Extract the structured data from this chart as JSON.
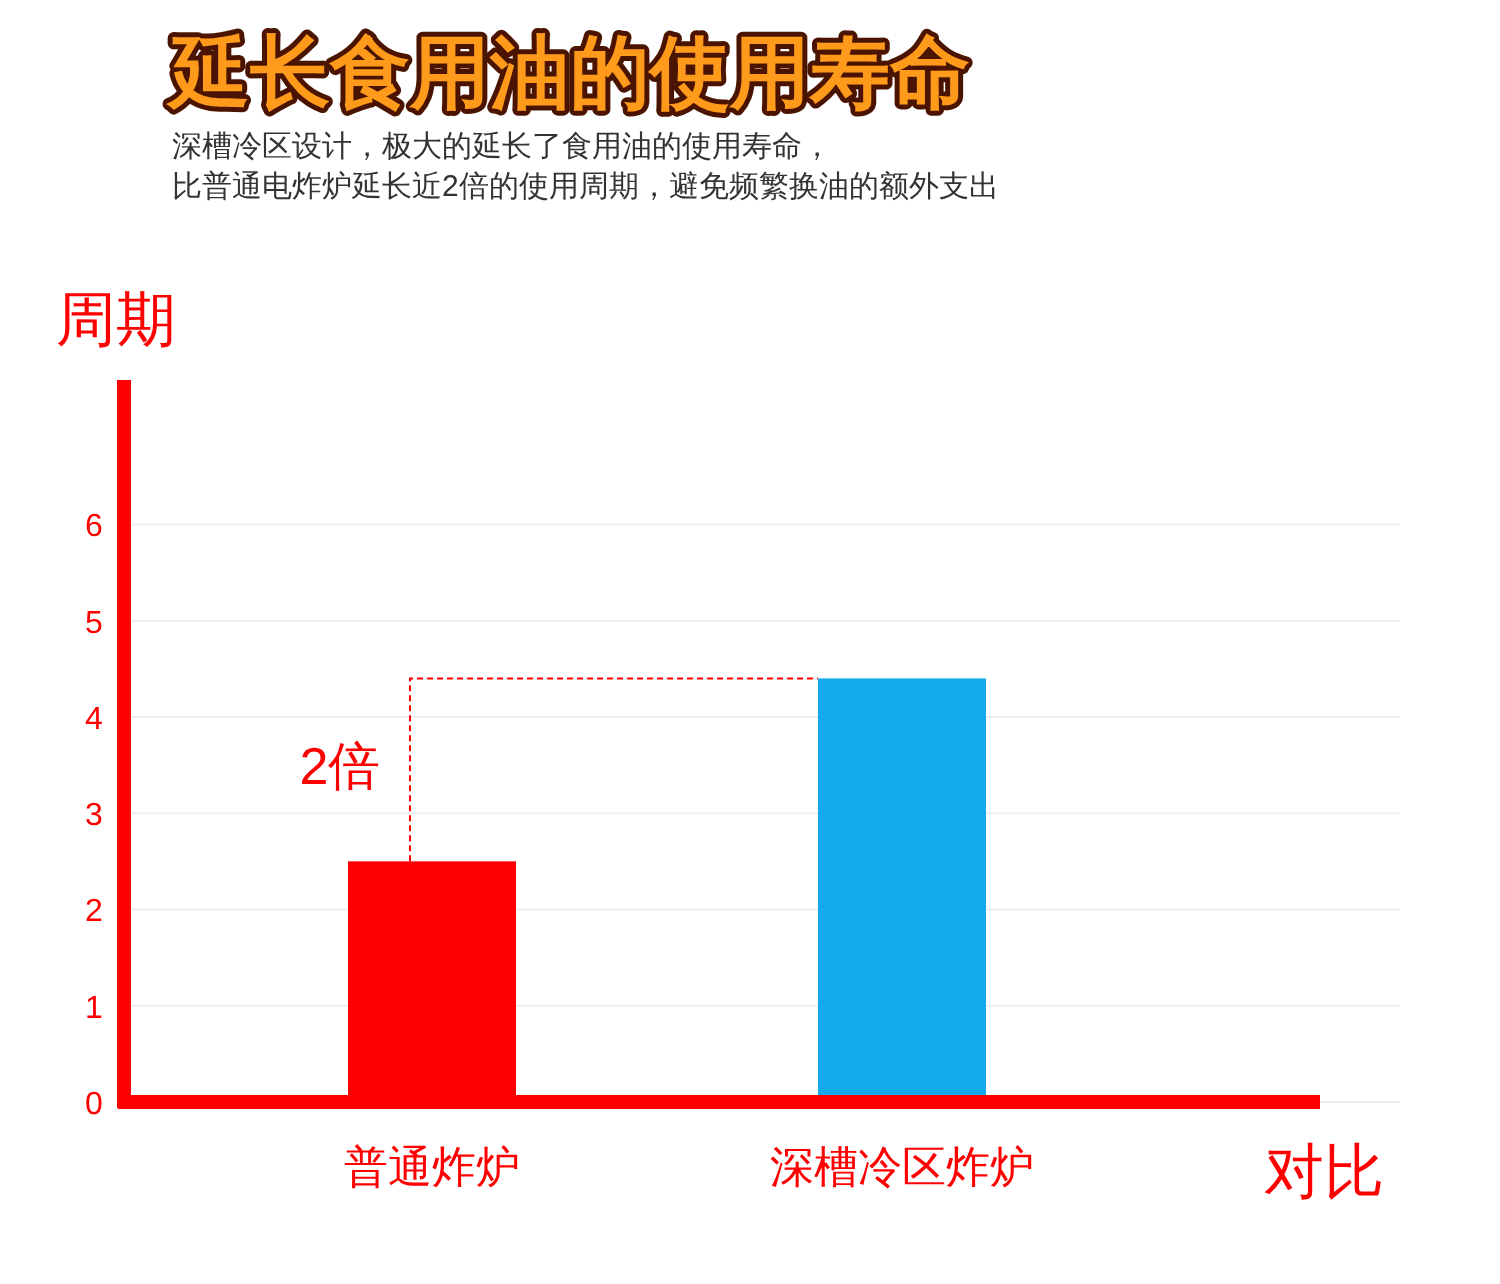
{
  "chart_data": {
    "type": "bar",
    "title": "延长食用油的使用寿命",
    "subtitle": "深槽冷区设计，极大的延长了食用油的使用寿命，比普通电炸炉延长近2倍的使用周期，避免频繁换油的额外支出",
    "ylabel": "周期",
    "xlabel": "对比",
    "categories": [
      "普通炸炉",
      "深槽冷区炸炉"
    ],
    "values": [
      2.5,
      4.4
    ],
    "colors": [
      "#ff0000",
      "#12aaeb"
    ],
    "ylim": [
      0,
      7.5
    ],
    "yticks": [
      0,
      1,
      2,
      3,
      4,
      5,
      6
    ],
    "grid": "y",
    "annotations": [
      "2倍"
    ]
  }
}
